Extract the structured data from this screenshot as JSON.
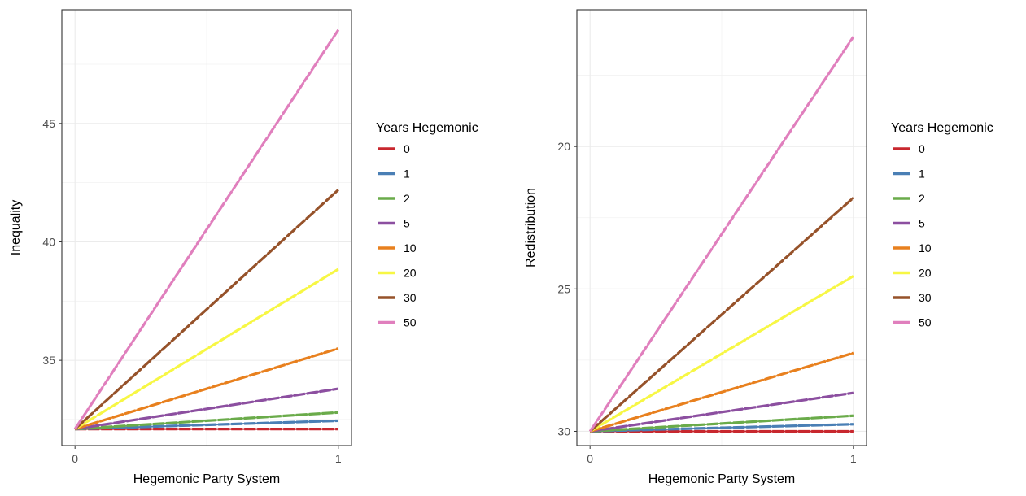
{
  "chart_data": [
    {
      "type": "line",
      "xlabel": "Hegemonic Party System",
      "ylabel": "Inequality",
      "x": [
        0,
        1
      ],
      "xlim": [
        -0.05,
        1.05
      ],
      "ylim": [
        31.4,
        49.8
      ],
      "xticks": [
        0,
        1
      ],
      "yticks": [
        35,
        40,
        45
      ],
      "grid": true,
      "legend_title": "Years Hegemonic",
      "legend_position": "right",
      "series": [
        {
          "name": "0",
          "color": "#c8272e",
          "values": [
            32.1,
            32.1
          ]
        },
        {
          "name": "1",
          "color": "#4a7fb5",
          "values": [
            32.1,
            32.45
          ]
        },
        {
          "name": "2",
          "color": "#6aab4a",
          "values": [
            32.1,
            32.8
          ]
        },
        {
          "name": "5",
          "color": "#8c4fa0",
          "values": [
            32.1,
            33.8
          ]
        },
        {
          "name": "10",
          "color": "#e8801e",
          "values": [
            32.1,
            35.5
          ]
        },
        {
          "name": "20",
          "color": "#f7f744",
          "values": [
            32.1,
            38.85
          ]
        },
        {
          "name": "30",
          "color": "#96522a",
          "values": [
            32.1,
            42.2
          ]
        },
        {
          "name": "50",
          "color": "#e07fbd",
          "values": [
            32.1,
            48.95
          ]
        }
      ]
    },
    {
      "type": "line",
      "xlabel": "Hegemonic Party System",
      "ylabel": "Redistribution",
      "y_reversed": true,
      "x": [
        0,
        1
      ],
      "xlim": [
        -0.05,
        1.05
      ],
      "ylim": [
        15.2,
        30.5
      ],
      "xticks": [
        0,
        1
      ],
      "yticks": [
        20,
        25,
        30
      ],
      "grid": true,
      "legend_title": "Years Hegemonic",
      "legend_position": "right",
      "series": [
        {
          "name": "0",
          "color": "#c8272e",
          "values": [
            30.0,
            30.0
          ]
        },
        {
          "name": "1",
          "color": "#4a7fb5",
          "values": [
            30.0,
            29.75
          ]
        },
        {
          "name": "2",
          "color": "#6aab4a",
          "values": [
            30.0,
            29.45
          ]
        },
        {
          "name": "5",
          "color": "#8c4fa0",
          "values": [
            30.0,
            28.65
          ]
        },
        {
          "name": "10",
          "color": "#e8801e",
          "values": [
            30.0,
            27.25
          ]
        },
        {
          "name": "20",
          "color": "#f7f744",
          "values": [
            30.0,
            24.55
          ]
        },
        {
          "name": "30",
          "color": "#96522a",
          "values": [
            30.0,
            21.8
          ]
        },
        {
          "name": "50",
          "color": "#e07fbd",
          "values": [
            30.0,
            16.15
          ]
        }
      ]
    }
  ]
}
